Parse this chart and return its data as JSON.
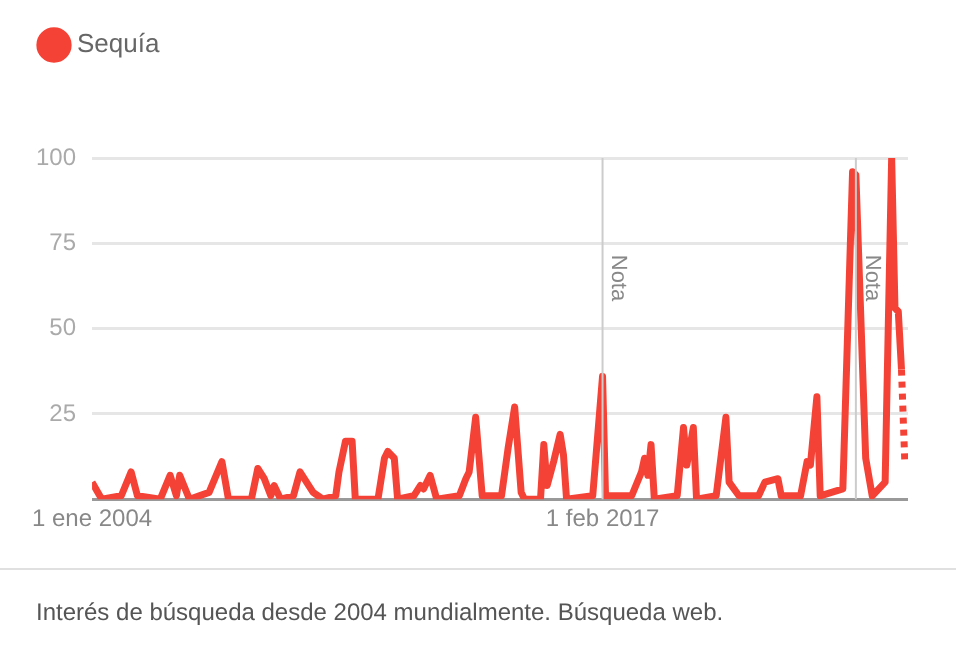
{
  "chart_data": {
    "type": "line",
    "legend": "top left",
    "marker": "none",
    "grid": "y",
    "xlim": [
      "2004-01",
      "2024-12"
    ],
    "xticks": [
      {
        "value": "2004-01",
        "label": "1 ene 2004"
      },
      {
        "value": "2017-02",
        "label": "1 feb 2017"
      }
    ],
    "ylim": [
      0,
      100
    ],
    "yticks": [
      {
        "value": 0,
        "label": null
      },
      25,
      50,
      75,
      100
    ],
    "ref_lines": [
      {
        "axis": "x",
        "value": "2017-02",
        "label": "Nota",
        "color": "#cccccc"
      },
      {
        "axis": "x",
        "value": "2023-08",
        "label": "Nota",
        "color": "#cccccc"
      }
    ],
    "annotations": [
      "Interés de búsqueda desde 2004 mundialmente. Búsqueda web."
    ],
    "series": [
      {
        "name": "Sequía",
        "color": "#f44336",
        "line_style": "solid",
        "x": [
          "2004-01",
          "2004-04",
          "2004-10",
          "2005-01",
          "2005-03",
          "2005-10",
          "2006-01",
          "2006-03",
          "2006-04",
          "2006-07",
          "2007-01",
          "2007-05",
          "2007-07",
          "2008-02",
          "2008-04",
          "2008-06",
          "2008-08",
          "2008-09",
          "2008-11",
          "2009-03",
          "2009-05",
          "2009-09",
          "2009-12",
          "2010-04",
          "2010-05",
          "2010-07",
          "2010-09",
          "2010-10",
          "2011-05",
          "2011-07",
          "2011-08",
          "2011-10",
          "2011-11",
          "2012-04",
          "2012-06",
          "2012-07",
          "2012-09",
          "2012-11",
          "2013-06",
          "2013-08",
          "2013-09",
          "2013-11",
          "2014-01",
          "2014-07",
          "2014-09",
          "2014-11",
          "2015-01",
          "2015-02",
          "2015-07",
          "2015-08",
          "2015-09",
          "2015-11",
          "2016-01",
          "2016-02",
          "2016-03",
          "2016-11",
          "2017-02",
          "2017-03",
          "2017-11",
          "2018-02",
          "2018-03",
          "2018-04",
          "2018-05",
          "2018-06",
          "2019-01",
          "2019-03",
          "2019-04",
          "2019-06",
          "2019-07",
          "2020-01",
          "2020-04",
          "2020-05",
          "2020-08",
          "2021-02",
          "2021-04",
          "2021-08",
          "2021-09",
          "2022-03",
          "2022-05",
          "2022-06",
          "2022-08",
          "2022-09",
          "2023-04",
          "2023-07",
          "2023-08",
          "2023-11",
          "2024-01",
          "2024-05",
          "2024-07",
          "2024-08",
          "2024-09",
          "2024-10"
        ],
        "values": [
          5,
          0,
          1,
          8,
          1,
          0,
          7,
          1,
          7,
          0,
          2,
          11,
          0,
          0,
          9,
          6,
          1,
          4,
          0,
          1,
          8,
          2,
          0,
          1,
          8,
          17,
          17,
          0,
          0,
          12,
          14,
          12,
          0,
          1,
          4,
          3,
          7,
          0,
          1,
          6,
          8,
          24,
          1,
          1,
          15,
          27,
          2,
          0,
          0,
          16,
          4,
          11,
          19,
          13,
          0,
          1,
          36,
          1,
          1,
          8,
          12,
          7,
          16,
          0,
          1,
          21,
          10,
          21,
          0,
          1,
          24,
          5,
          1,
          1,
          5,
          6,
          1,
          1,
          11,
          10,
          30,
          1,
          3,
          96,
          95,
          12,
          1,
          5,
          100,
          56,
          55,
          38
        ]
      },
      {
        "color": "#f44336",
        "line_style": "dotted",
        "x": [
          "2024-10",
          "2024-11"
        ],
        "values": [
          38,
          11
        ]
      }
    ]
  }
}
